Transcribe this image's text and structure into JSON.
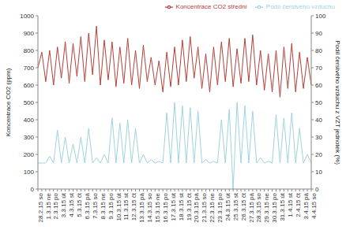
{
  "chart_data": {
    "type": "line",
    "y_label": "Koncentrace CO2 (ppm)",
    "y2_label": "Podíl čerstvého vzduchu z VZT jednotek (%)",
    "categories": [
      "28.2.15 so",
      null,
      "1.3.15 ne",
      null,
      "2.3.15 po",
      null,
      "3.3.15 út",
      null,
      "4.3.15 st",
      null,
      "5.3.15 čt",
      null,
      "6.3.15 pá",
      null,
      "7.3.15 so",
      null,
      "8.3.15 ne",
      null,
      "9.3.15 po",
      null,
      "10.3.15 út",
      null,
      "11.3.15 st",
      null,
      "12.3.15 čt",
      null,
      "13.3.15 pá",
      null,
      "14.3.15 so",
      null,
      "15.3.15 ne",
      null,
      "16.3.15 po",
      null,
      "17.3.15 út",
      null,
      "18.3.15 st",
      null,
      "19.3.15 čt",
      null,
      "20.3.15 pá",
      null,
      "21.3.15 so",
      null,
      "22.3.15 ne",
      null,
      "23.3.15 po",
      null,
      "24.3.15 út",
      null,
      "25.3.15 st",
      null,
      "26.3.15 čt",
      null,
      "27.3.15 pá",
      null,
      "28.3.15 so",
      null,
      "29.3.15 ne",
      null,
      "30.3.15 po",
      null,
      "31.3.15 út",
      null,
      "1.4.15 st",
      null,
      "2.4.15 čt",
      null,
      "3.4.15 pá",
      null,
      "4.4.15 so"
    ],
    "series": [
      {
        "name": "Koncentrace CO2 střední",
        "color": "#b5413a",
        "values": [
          700,
          790,
          620,
          800,
          600,
          820,
          640,
          850,
          610,
          840,
          650,
          880,
          620,
          900,
          660,
          940,
          600,
          860,
          630,
          850,
          590,
          820,
          610,
          870,
          600,
          800,
          580,
          830,
          620,
          760,
          600,
          740,
          560,
          790,
          590,
          820,
          600,
          860,
          620,
          880,
          640,
          820,
          580,
          780,
          560,
          820,
          600,
          850,
          620,
          870,
          590,
          810,
          610,
          870,
          620,
          890,
          600,
          800,
          570,
          780,
          560,
          800,
          530,
          820,
          580,
          840,
          560,
          790,
          580,
          760,
          600
        ]
      },
      {
        "name": "Podíl čerstvého vzduchu",
        "color": "#9fd3e0",
        "axis": "y2",
        "values": [
          15,
          15,
          15,
          19,
          15,
          34,
          15,
          30,
          15,
          26,
          15,
          30,
          15,
          35,
          15,
          18,
          15,
          20,
          15,
          41,
          15,
          38,
          15,
          40,
          15,
          35,
          15,
          20,
          15,
          17,
          15,
          16,
          15,
          44,
          15,
          50,
          15,
          48,
          15,
          47,
          15,
          45,
          15,
          17,
          15,
          16,
          15,
          40,
          15,
          46,
          0,
          50,
          15,
          48,
          15,
          45,
          15,
          18,
          15,
          16,
          15,
          43,
          15,
          41,
          15,
          44,
          15,
          35,
          15,
          20,
          15
        ]
      }
    ],
    "ylim": [
      0,
      1000
    ],
    "yticks": [
      0,
      100,
      200,
      300,
      400,
      500,
      600,
      700,
      800,
      900,
      1000
    ],
    "y2lim": [
      0,
      100
    ],
    "y2ticks": [
      0,
      10,
      20,
      30,
      40,
      50,
      60,
      70,
      80,
      90,
      100
    ],
    "grid": false,
    "legend": "top right"
  }
}
